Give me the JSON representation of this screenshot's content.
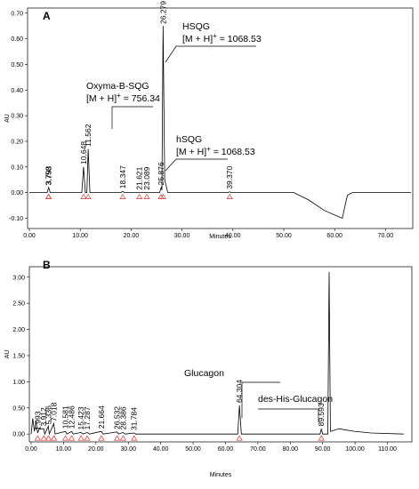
{
  "chart_data": [
    {
      "type": "line",
      "panel_label": "A",
      "x_label": "Minutes",
      "y_label": "AU",
      "color": "#000000",
      "marker_color": "#e03030",
      "xlim": [
        0,
        75
      ],
      "ylim": [
        -0.14,
        0.72
      ],
      "xticks": [
        {
          "value": 0,
          "label": "0.00"
        },
        {
          "value": 10,
          "label": "10.00"
        },
        {
          "value": 20,
          "label": "20.00"
        },
        {
          "value": 30,
          "label": "30.00"
        },
        {
          "value": 40,
          "label": "40.00"
        },
        {
          "value": 50,
          "label": "50.00"
        },
        {
          "value": 60,
          "label": "60.00"
        },
        {
          "value": 70,
          "label": "70.00"
        }
      ],
      "yticks": [
        {
          "value": -0.1,
          "label": "-0.10"
        },
        {
          "value": 0,
          "label": "0.00"
        },
        {
          "value": 0.1,
          "label": "0.10"
        },
        {
          "value": 0.2,
          "label": "0.20"
        },
        {
          "value": 0.3,
          "label": "0.30"
        },
        {
          "value": 0.4,
          "label": "0.40"
        },
        {
          "value": 0.5,
          "label": "0.50"
        },
        {
          "value": 0.6,
          "label": "0.60"
        },
        {
          "value": 0.7,
          "label": "0.70"
        }
      ],
      "x": [
        0,
        2,
        3.5,
        3.8,
        4.1,
        10.3,
        10.65,
        11.0,
        11.3,
        11.56,
        11.9,
        18.0,
        18.35,
        18.7,
        25.6,
        25.9,
        26.05,
        26.28,
        26.6,
        27.2,
        39.0,
        39.37,
        39.7,
        52,
        55,
        58,
        61.5,
        62.5,
        63.5,
        75
      ],
      "values": [
        0,
        0,
        0,
        0.02,
        0,
        0,
        0.1,
        0,
        0,
        0.17,
        0,
        0,
        0.005,
        0,
        0,
        0.02,
        0.01,
        0.65,
        0.05,
        0,
        0,
        0.003,
        0,
        0,
        -0.03,
        -0.07,
        -0.1,
        -0.01,
        0,
        0
      ],
      "peaks": [
        3.758,
        3.793,
        10.648,
        11.562,
        18.347,
        21.621,
        23.089,
        25.876,
        26.279,
        {
          "value": 39.37,
          "label": "39.370"
        }
      ],
      "annotations": [
        {
          "name": "HSQG",
          "prefix": "[M + H]",
          "sup": "+",
          "suffix": " = 1068.53"
        },
        {
          "name": "Oxyma-B-SQG",
          "prefix": "[M + H]",
          "sup": "+",
          "suffix": " = 756.34"
        },
        {
          "name": "hSQG",
          "prefix": "[M + H]",
          "sup": "+",
          "suffix": " = 1068.53"
        }
      ]
    },
    {
      "type": "line",
      "panel_label": "B",
      "x_label": "Minutes",
      "y_label": "AU",
      "color": "#000000",
      "marker_color": "#e03030",
      "xlim": [
        0,
        117
      ],
      "ylim": [
        -0.15,
        3.2
      ],
      "xticks": [
        {
          "value": 0,
          "label": "0.00"
        },
        {
          "value": 10,
          "label": "10.00"
        },
        {
          "value": 20,
          "label": "20.00"
        },
        {
          "value": 30,
          "label": "30.00"
        },
        {
          "value": 40,
          "label": "40.00"
        },
        {
          "value": 50,
          "label": "50.00"
        },
        {
          "value": 60,
          "label": "60.00"
        },
        {
          "value": 70,
          "label": "70.00"
        },
        {
          "value": 80,
          "label": "80.00"
        },
        {
          "value": 90,
          "label": "90.00"
        },
        {
          "value": 100,
          "label": "100.00"
        },
        {
          "value": 110,
          "label": "110.00"
        }
      ],
      "yticks": [
        {
          "value": 0,
          "label": "0.00"
        },
        {
          "value": 0.5,
          "label": "0.50"
        },
        {
          "value": 1,
          "label": "1.00"
        },
        {
          "value": 1.5,
          "label": "1.50"
        },
        {
          "value": 2,
          "label": "2.00"
        },
        {
          "value": 2.5,
          "label": "2.50"
        },
        {
          "value": 3,
          "label": "3.00"
        }
      ],
      "x": [
        0,
        0.5,
        1,
        1.5,
        2,
        2.5,
        3.9,
        4.2,
        5.3,
        5.6,
        7,
        7.4,
        10.6,
        11,
        12.5,
        13,
        15.4,
        16,
        17.3,
        18,
        21.7,
        22.2,
        26.5,
        27,
        28.4,
        29,
        31.8,
        32.3,
        63.8,
        64.3,
        64.9,
        89.2,
        89.6,
        90,
        91.6,
        92,
        92.4,
        95,
        100,
        105,
        115
      ],
      "values": [
        0,
        0.3,
        0.05,
        0.25,
        0.02,
        0.1,
        0.1,
        0,
        0.15,
        0,
        0.2,
        0,
        0.05,
        0,
        0.05,
        0,
        0.03,
        0,
        0.03,
        0,
        0.05,
        0,
        0.04,
        0,
        0.03,
        0,
        0.02,
        0,
        0,
        0.55,
        0,
        0,
        0.1,
        0,
        0,
        3.1,
        0.05,
        0.1,
        0.05,
        0.02,
        0
      ],
      "peaks": [
        1.993,
        3.912,
        5.336,
        7.018,
        10.581,
        12.486,
        15.423,
        17.287,
        21.664,
        26.532,
        28.386,
        31.784,
        64.304,
        89.593
      ],
      "annotations": [
        {
          "name": "Glucagon"
        },
        {
          "name": "des-His-Glucagon"
        }
      ]
    }
  ]
}
